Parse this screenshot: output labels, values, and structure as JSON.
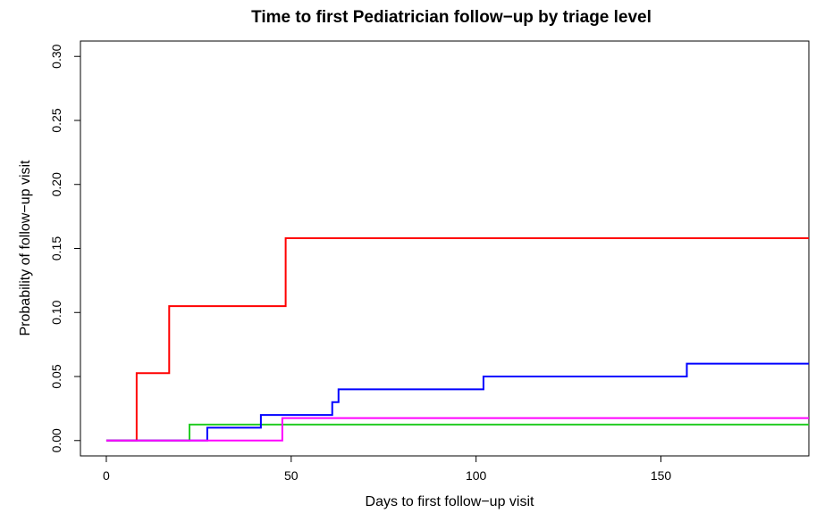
{
  "chart_data": {
    "type": "step",
    "title": "Time to first Pediatrician follow−up by triage level",
    "x_label": "Days to first follow−up visit",
    "y_label": "Probability of follow−up visit",
    "xlim": [
      -7,
      190
    ],
    "ylim": [
      -0.012,
      0.312
    ],
    "xticks": [
      0,
      50,
      100,
      150
    ],
    "yticks": [
      {
        "value": 0,
        "label": "0.00"
      },
      0.05,
      {
        "value": 0.1,
        "label": "0.10"
      },
      0.15,
      {
        "value": 0.2,
        "label": "0.20"
      },
      0.25,
      {
        "value": 0.3,
        "label": "0.30"
      }
    ],
    "series": [
      {
        "color": "#ff0000",
        "x": [
          0,
          8.2,
          17,
          48.5,
          190
        ],
        "values": [
          0,
          0.0526,
          0.105,
          0.158,
          0.158
        ]
      },
      {
        "color": "#22cc22",
        "x": [
          0,
          22.5,
          190
        ],
        "values": [
          0,
          0.0125,
          0.0125
        ]
      },
      {
        "color": "#0000ff",
        "x": [
          0,
          27.3,
          41.8,
          61.1,
          62.8,
          102,
          157,
          190
        ],
        "values": [
          0,
          0.01,
          0.02,
          0.03,
          0.04,
          0.05,
          0.06,
          0.06
        ]
      },
      {
        "color": "#ff00ff",
        "x": [
          0,
          47.6,
          190
        ],
        "values": [
          0,
          0.0175,
          0.0175
        ]
      }
    ]
  }
}
